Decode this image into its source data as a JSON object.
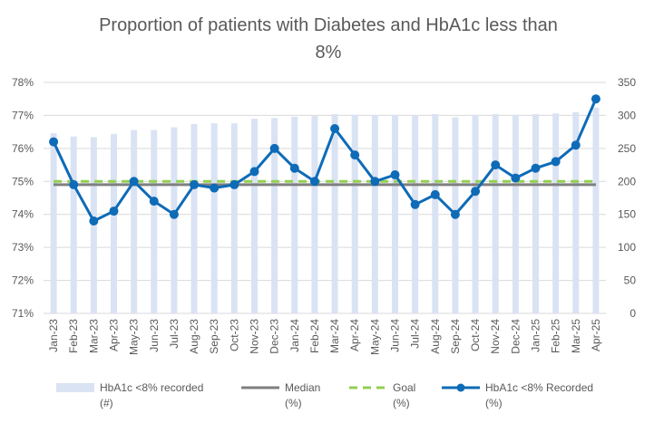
{
  "chart_data": {
    "type": "bar+line",
    "title_lines": [
      "Proportion of patients with Diabetes and HbA1c less than",
      "8%"
    ],
    "categories": [
      "Jan-23",
      "Feb-23",
      "Mar-23",
      "Apr-23",
      "May-23",
      "Jun-23",
      "Jul-23",
      "Aug-23",
      "Sep-23",
      "Oct-23",
      "Nov-23",
      "Dec-23",
      "Jan-24",
      "Feb-24",
      "Mar-24",
      "Apr-24",
      "May-24",
      "Jun-24",
      "Jul-24",
      "Aug-24",
      "Sep-24",
      "Oct-24",
      "Nov-24",
      "Dec-24",
      "Jan-25",
      "Feb-25",
      "Mar-25",
      "Apr-25"
    ],
    "y_left": {
      "min": 71,
      "max": 78,
      "step": 1,
      "tick_labels": [
        "71%",
        "72%",
        "73%",
        "74%",
        "75%",
        "76%",
        "77%",
        "78%"
      ]
    },
    "y_right": {
      "min": 0,
      "max": 350,
      "step": 50,
      "tick_labels": [
        "0",
        "50",
        "100",
        "150",
        "200",
        "250",
        "300",
        "350"
      ]
    },
    "grid": true,
    "legend_position": "bottom",
    "series": [
      {
        "name": "HbA1c <8% recorded (#)",
        "name_lines": [
          "HbA1c <8% recorded",
          "(#)"
        ],
        "kind": "bar",
        "axis": "right",
        "color": "#dae3f3",
        "values": [
          273,
          268,
          267,
          272,
          278,
          278,
          282,
          287,
          288,
          288,
          295,
          296,
          298,
          299,
          302,
          301,
          301,
          301,
          300,
          302,
          297,
          301,
          302,
          301,
          302,
          303,
          305,
          312
        ]
      },
      {
        "name": "Median (%)",
        "name_lines": [
          "Median",
          "(%)"
        ],
        "kind": "line",
        "axis": "left",
        "color": "#7f7f7f",
        "values": [
          74.9,
          74.9,
          74.9,
          74.9,
          74.9,
          74.9,
          74.9,
          74.9,
          74.9,
          74.9,
          74.9,
          74.9,
          74.9,
          74.9,
          74.9,
          74.9,
          74.9,
          74.9,
          74.9,
          74.9,
          74.9,
          74.9,
          74.9,
          74.9,
          74.9,
          74.9,
          74.9,
          74.9
        ]
      },
      {
        "name": "Goal (%)",
        "name_lines": [
          "Goal",
          "(%)"
        ],
        "kind": "dashed-line",
        "axis": "left",
        "color": "#92d050",
        "values": [
          75,
          75,
          75,
          75,
          75,
          75,
          75,
          75,
          75,
          75,
          75,
          75,
          75,
          75,
          75,
          75,
          75,
          75,
          75,
          75,
          75,
          75,
          75,
          75,
          75,
          75,
          75,
          75
        ]
      },
      {
        "name": "HbA1c <8% Recorded (%)",
        "name_lines": [
          "HbA1c <8% Recorded",
          "(%)"
        ],
        "kind": "line-markers",
        "axis": "left",
        "color": "#0e6bb7",
        "values": [
          76.2,
          74.9,
          73.8,
          74.1,
          75.0,
          74.4,
          74.0,
          74.9,
          74.8,
          74.9,
          75.3,
          76.0,
          75.4,
          75.0,
          76.6,
          75.8,
          75.0,
          75.2,
          74.3,
          74.6,
          74.0,
          74.7,
          75.5,
          75.1,
          75.4,
          75.6,
          76.1,
          77.5
        ]
      }
    ]
  }
}
